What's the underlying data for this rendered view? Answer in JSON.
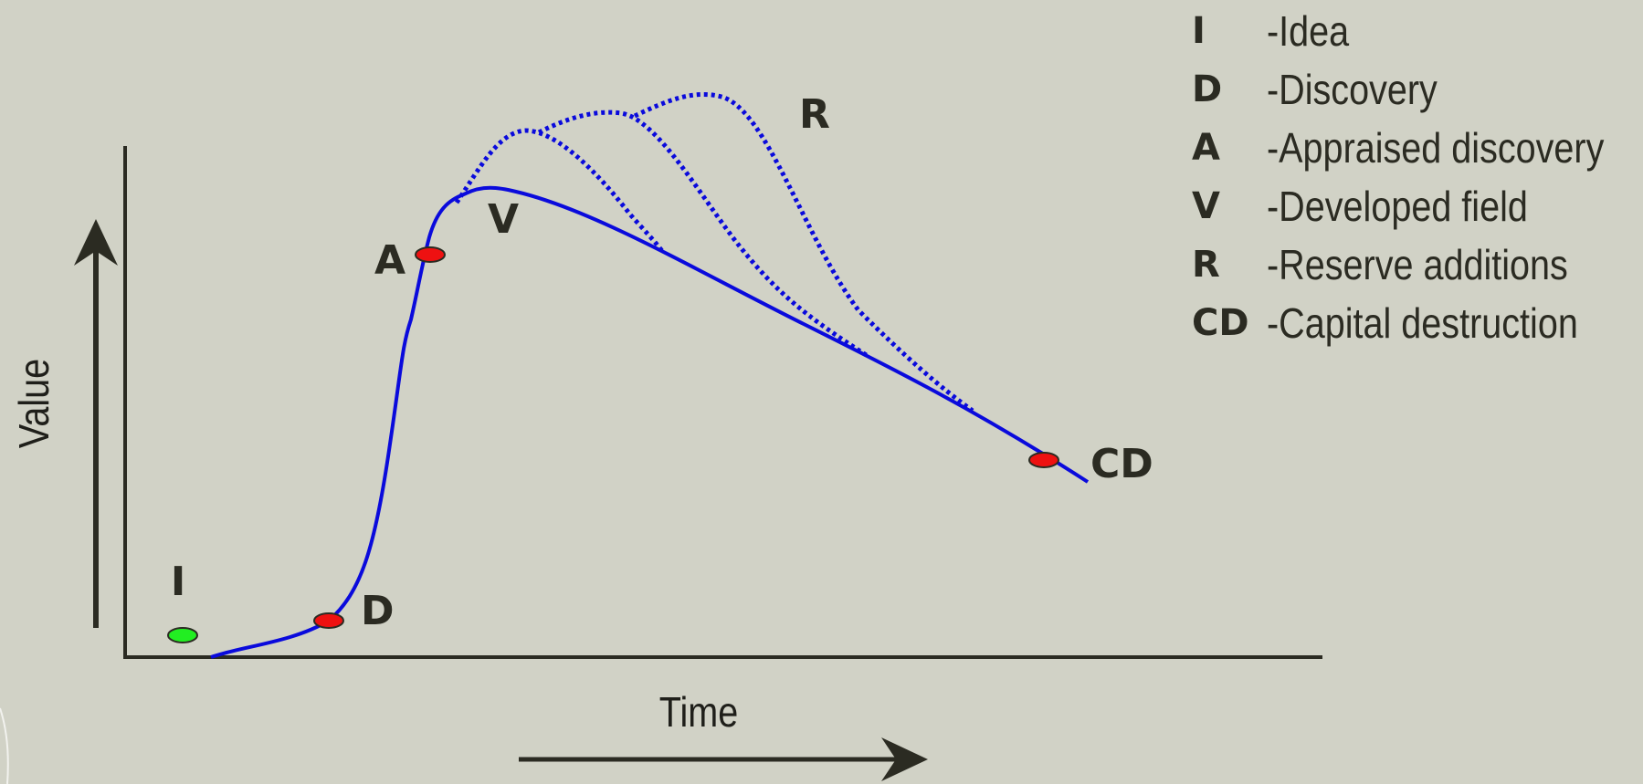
{
  "axes": {
    "y_label": "Value",
    "x_label": "Time"
  },
  "points": [
    {
      "code": "I",
      "color": "#22ee22"
    },
    {
      "code": "D",
      "color": "#ee1111"
    },
    {
      "code": "A",
      "color": "#ee1111"
    },
    {
      "code": "V"
    },
    {
      "code": "R"
    },
    {
      "code": "CD",
      "color": "#ee1111"
    }
  ],
  "legend": [
    {
      "code": "I",
      "text": "-Idea"
    },
    {
      "code": "D",
      "text": "-Discovery"
    },
    {
      "code": "A",
      "text": "-Appraised discovery"
    },
    {
      "code": "V",
      "text": "-Developed field"
    },
    {
      "code": "R",
      "text": "-Reserve additions"
    },
    {
      "code": "CD",
      "text": "-Capital destruction"
    }
  ],
  "colors": {
    "curve": "#0a0adc",
    "axis": "#2b2b22",
    "background": "#d1d2c6"
  }
}
